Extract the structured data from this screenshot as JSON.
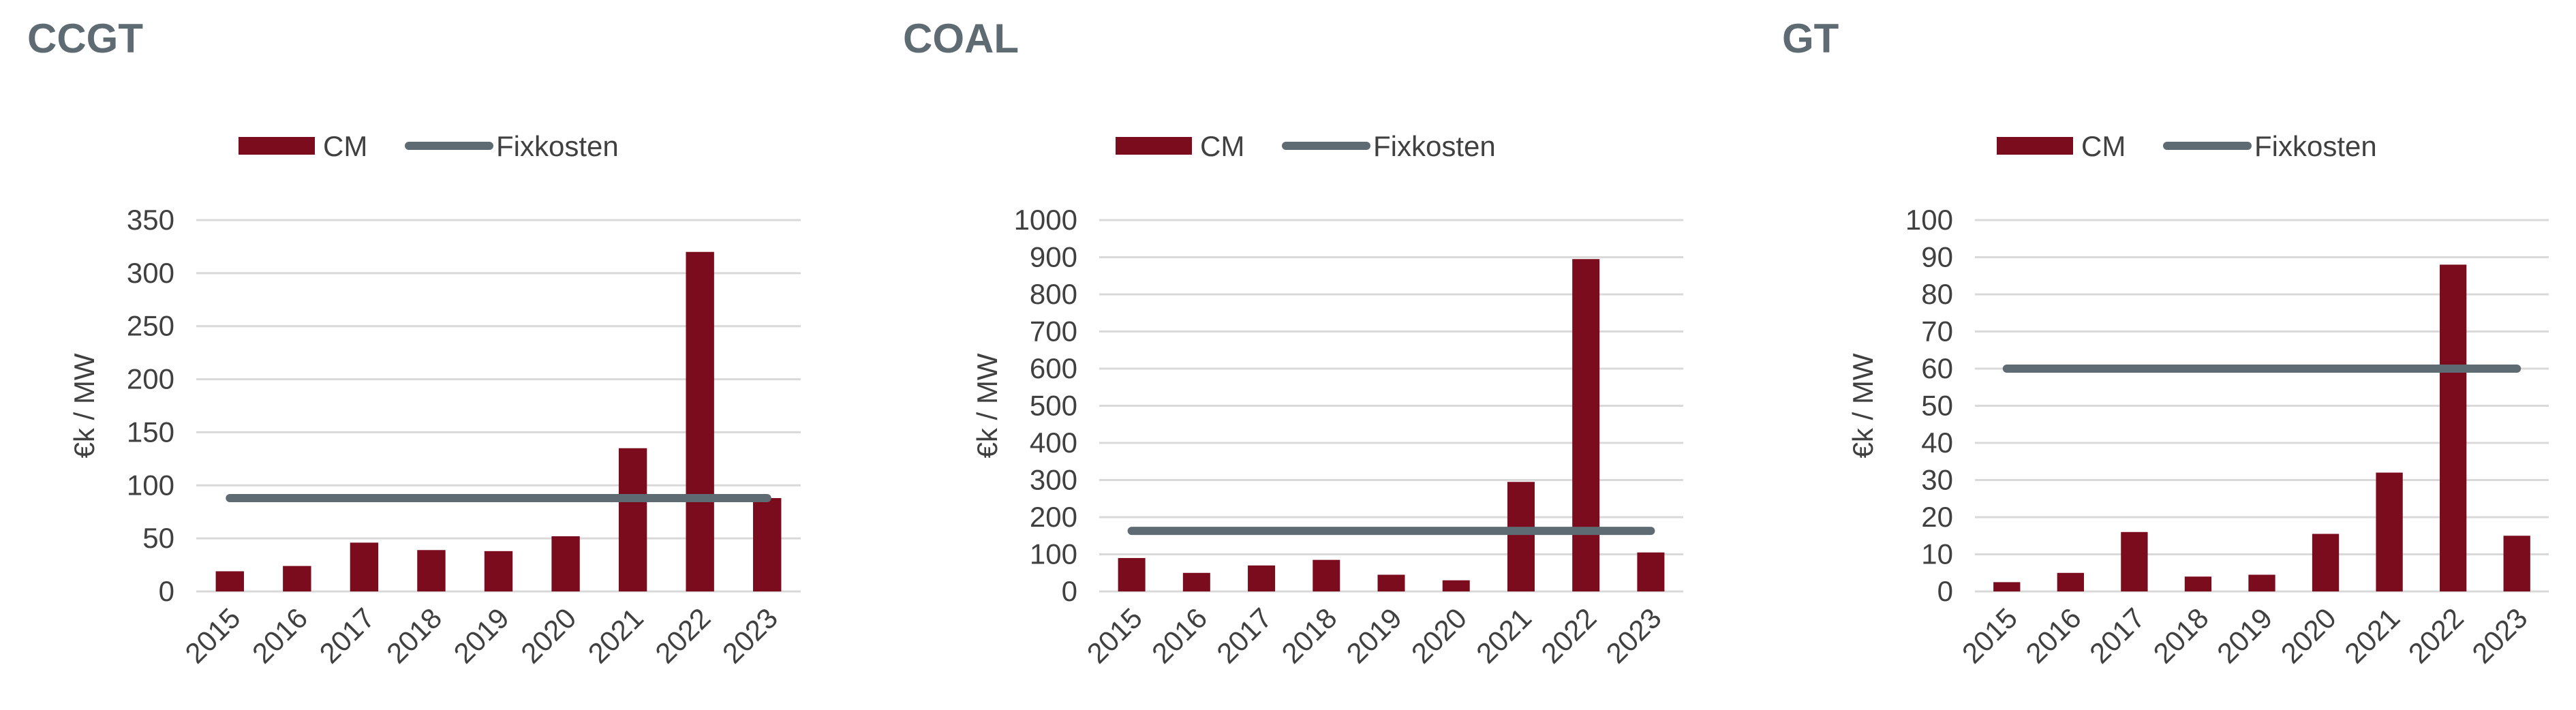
{
  "colors": {
    "cm": "#7b0c1e",
    "fixkosten": "#5f6b73",
    "grid": "#d9d9d9",
    "title": "#5f6b73",
    "text": "#404040"
  },
  "legend": {
    "cm_label": "CM",
    "fixkosten_label": "Fixkosten"
  },
  "chart_data": [
    {
      "type": "bar",
      "title": "CCGT",
      "ylabel": "€k / MW",
      "xlabel": "",
      "categories": [
        "2015",
        "2016",
        "2017",
        "2018",
        "2019",
        "2020",
        "2021",
        "2022",
        "2023"
      ],
      "series": [
        {
          "name": "CM",
          "type": "bar",
          "values": [
            19,
            24,
            46,
            39,
            38,
            52,
            135,
            320,
            88
          ]
        },
        {
          "name": "Fixkosten",
          "type": "line",
          "values": [
            88,
            88,
            88,
            88,
            88,
            88,
            88,
            88,
            88
          ]
        }
      ],
      "ylim": [
        0,
        350
      ],
      "yticks": [
        0,
        50,
        100,
        150,
        200,
        250,
        300,
        350
      ],
      "grid": true,
      "legend": "top"
    },
    {
      "type": "bar",
      "title": "COAL",
      "ylabel": "€k / MW",
      "xlabel": "",
      "categories": [
        "2015",
        "2016",
        "2017",
        "2018",
        "2019",
        "2020",
        "2021",
        "2022",
        "2023"
      ],
      "series": [
        {
          "name": "CM",
          "type": "bar",
          "values": [
            90,
            50,
            70,
            85,
            45,
            30,
            295,
            895,
            105
          ]
        },
        {
          "name": "Fixkosten",
          "type": "line",
          "values": [
            163,
            163,
            163,
            163,
            163,
            163,
            163,
            163,
            163
          ]
        }
      ],
      "ylim": [
        0,
        1000
      ],
      "yticks": [
        0,
        100,
        200,
        300,
        400,
        500,
        600,
        700,
        800,
        900,
        1000
      ],
      "grid": true,
      "legend": "top"
    },
    {
      "type": "bar",
      "title": "GT",
      "ylabel": "€k / MW",
      "xlabel": "",
      "categories": [
        "2015",
        "2016",
        "2017",
        "2018",
        "2019",
        "2020",
        "2021",
        "2022",
        "2023"
      ],
      "series": [
        {
          "name": "CM",
          "type": "bar",
          "values": [
            2.5,
            5,
            16,
            4,
            4.5,
            15.5,
            32,
            88,
            15
          ]
        },
        {
          "name": "Fixkosten",
          "type": "line",
          "values": [
            60,
            60,
            60,
            60,
            60,
            60,
            60,
            60,
            60
          ]
        }
      ],
      "ylim": [
        0,
        100
      ],
      "yticks": [
        0,
        10,
        20,
        30,
        40,
        50,
        60,
        70,
        80,
        90,
        100
      ],
      "grid": true,
      "legend": "top"
    }
  ]
}
